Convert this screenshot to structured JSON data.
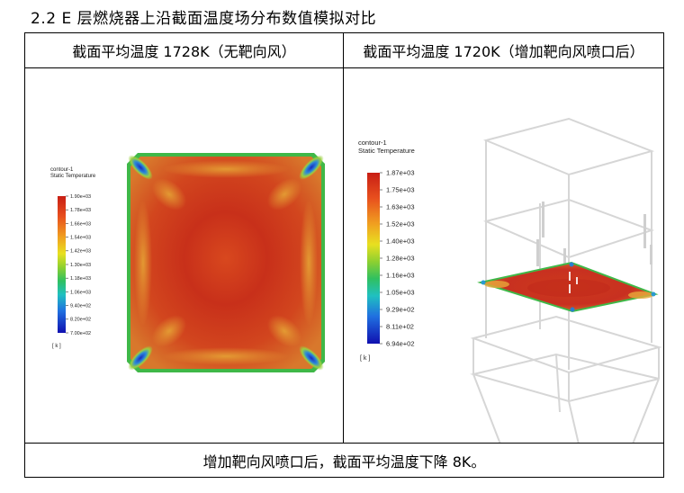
{
  "section_title": "2.2 E 层燃烧器上沿截面温度场分布数值模拟对比",
  "table": {
    "left_header": "截面平均温度 1728K（无靶向风）",
    "right_header": "截面平均温度 1720K（增加靶向风喷口后）",
    "footer": "增加靶向风喷口后，截面平均温度下降 8K。"
  },
  "left_plot": {
    "legend_name": "contour-1",
    "legend_variable": "Static Temperature",
    "unit": "[ k ]",
    "ticks": [
      "1.90e+03",
      "1.78e+03",
      "1.66e+03",
      "1.54e+03",
      "1.42e+03",
      "1.30e+03",
      "1.18e+03",
      "1.06e+03",
      "9.40e+02",
      "8.20e+02",
      "7.00e+02"
    ]
  },
  "right_plot": {
    "legend_name": "contour-1",
    "legend_variable": "Static Temperature",
    "unit": "[ k ]",
    "ticks": [
      "1.87e+03",
      "1.75e+03",
      "1.63e+03",
      "1.52e+03",
      "1.40e+03",
      "1.28e+03",
      "1.16e+03",
      "1.05e+03",
      "9.29e+02",
      "8.11e+02",
      "6.94e+02"
    ]
  },
  "colors": {
    "hot": "#c8301e",
    "warm": "#e0682a",
    "mid": "#9dc43a",
    "cool": "#2a7fd0",
    "cold": "#1b1fb0"
  }
}
